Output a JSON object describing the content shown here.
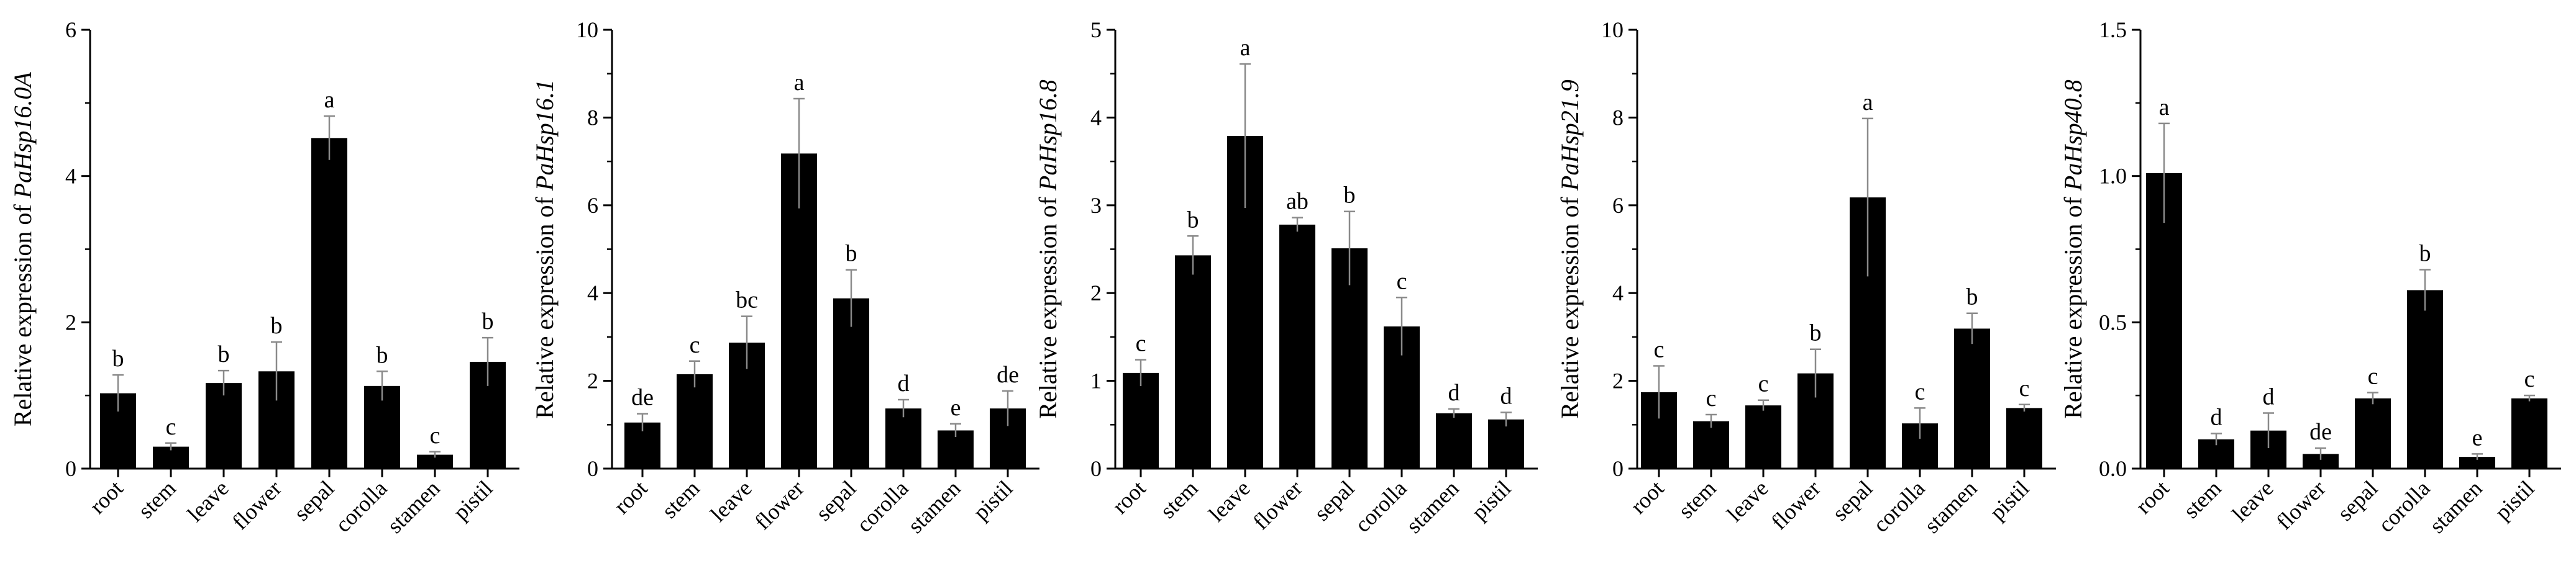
{
  "chart_data": [
    {
      "type": "bar",
      "ylabel_prefix": "Relative expression of ",
      "ylabel_gene": "PaHsp16.0A",
      "categories": [
        "root",
        "stem",
        "leave",
        "flower",
        "sepal",
        "corolla",
        "stamen",
        "pistil"
      ],
      "values": [
        1.03,
        0.3,
        1.17,
        1.33,
        4.52,
        1.13,
        0.19,
        1.46
      ],
      "errors": [
        0.25,
        0.05,
        0.17,
        0.4,
        0.3,
        0.2,
        0.04,
        0.33
      ],
      "letters": [
        "b",
        "c",
        "b",
        "b",
        "a",
        "b",
        "c",
        "b"
      ],
      "ylim": [
        0,
        6
      ],
      "yticks": [
        "0",
        "2",
        "4",
        "6"
      ],
      "ytick_values": [
        0,
        2,
        4,
        6
      ],
      "minor_step": 1
    },
    {
      "type": "bar",
      "ylabel_prefix": "Relative expression of ",
      "ylabel_gene": "PaHsp16.1",
      "categories": [
        "root",
        "stem",
        "leave",
        "flower",
        "sepal",
        "corolla",
        "stamen",
        "pistil"
      ],
      "values": [
        1.05,
        2.15,
        2.87,
        7.18,
        3.88,
        1.37,
        0.87,
        1.37
      ],
      "errors": [
        0.2,
        0.3,
        0.6,
        1.25,
        0.65,
        0.2,
        0.15,
        0.4
      ],
      "letters": [
        "de",
        "c",
        "bc",
        "a",
        "b",
        "d",
        "e",
        "de"
      ],
      "ylim": [
        0,
        10
      ],
      "yticks": [
        "0",
        "2",
        "4",
        "6",
        "8",
        "10"
      ],
      "ytick_values": [
        0,
        2,
        4,
        6,
        8,
        10
      ],
      "minor_step": 1
    },
    {
      "type": "bar",
      "ylabel_prefix": "Relative expression of ",
      "ylabel_gene": "PaHsp16.8",
      "categories": [
        "root",
        "stem",
        "leave",
        "flower",
        "sepal",
        "corolla",
        "stamen",
        "pistil"
      ],
      "values": [
        1.09,
        2.43,
        3.79,
        2.78,
        2.51,
        1.62,
        0.63,
        0.56
      ],
      "errors": [
        0.15,
        0.22,
        0.82,
        0.08,
        0.42,
        0.33,
        0.05,
        0.08
      ],
      "letters": [
        "c",
        "b",
        "a",
        "ab",
        "b",
        "c",
        "d",
        "d"
      ],
      "ylim": [
        0,
        5
      ],
      "yticks": [
        "0",
        "1",
        "2",
        "3",
        "4",
        "5"
      ],
      "ytick_values": [
        0,
        1,
        2,
        3,
        4,
        5
      ],
      "minor_step": 0.5
    },
    {
      "type": "bar",
      "ylabel_prefix": "Relative expression of ",
      "ylabel_gene": "PaHsp21.9",
      "categories": [
        "root",
        "stem",
        "leave",
        "flower",
        "sepal",
        "corolla",
        "stamen",
        "pistil"
      ],
      "values": [
        1.74,
        1.08,
        1.44,
        2.17,
        6.18,
        1.03,
        3.19,
        1.38
      ],
      "errors": [
        0.6,
        0.15,
        0.12,
        0.55,
        1.8,
        0.35,
        0.35,
        0.08
      ],
      "letters": [
        "c",
        "c",
        "c",
        "b",
        "a",
        "c",
        "b",
        "c"
      ],
      "ylim": [
        0,
        10
      ],
      "yticks": [
        "0",
        "2",
        "4",
        "6",
        "8",
        "10"
      ],
      "ytick_values": [
        0,
        2,
        4,
        6,
        8,
        10
      ],
      "minor_step": 1
    },
    {
      "type": "bar",
      "ylabel_prefix": "Relative expression of ",
      "ylabel_gene": "PaHsp40.8",
      "categories": [
        "root",
        "stem",
        "leave",
        "flower",
        "sepal",
        "corolla",
        "stamen",
        "pistil"
      ],
      "values": [
        1.01,
        0.1,
        0.13,
        0.05,
        0.24,
        0.61,
        0.04,
        0.24
      ],
      "errors": [
        0.17,
        0.02,
        0.06,
        0.02,
        0.02,
        0.07,
        0.01,
        0.01
      ],
      "letters": [
        "a",
        "d",
        "d",
        "de",
        "c",
        "b",
        "e",
        "c"
      ],
      "ylim": [
        0,
        1.5
      ],
      "yticks": [
        "0.0",
        "0.5",
        "1.0",
        "1.5"
      ],
      "ytick_values": [
        0,
        0.5,
        1.0,
        1.5
      ],
      "minor_step": 0.25
    }
  ]
}
